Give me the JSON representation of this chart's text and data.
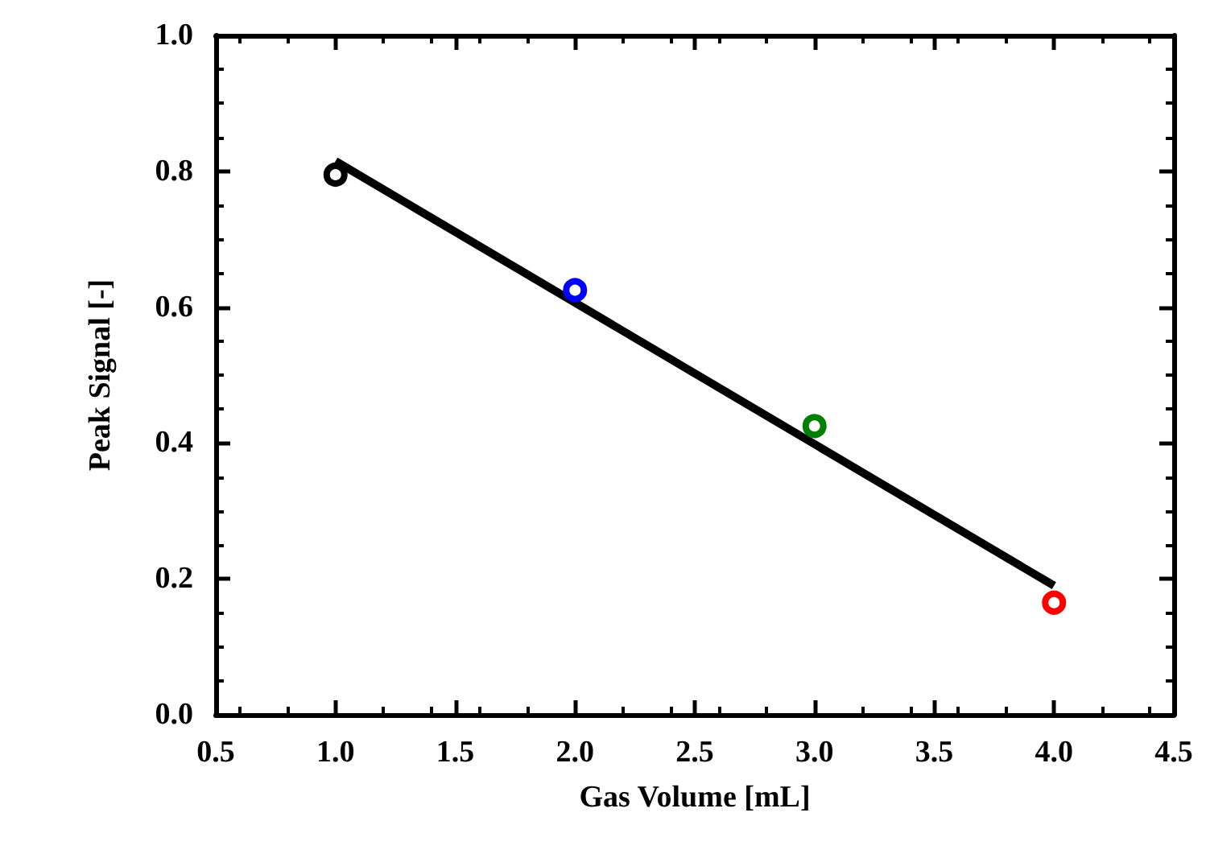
{
  "chart_data": {
    "type": "scatter",
    "xlabel": "Gas Volume [mL]",
    "ylabel": "Peak Signal [-]",
    "xlim": [
      0.5,
      4.5
    ],
    "xticks": [
      0.5,
      {
        "value": 1,
        "label": "1.0"
      },
      1.5,
      {
        "value": 2,
        "label": "2.0"
      },
      2.5,
      {
        "value": 3,
        "label": "3.0"
      },
      3.5,
      {
        "value": 4,
        "label": "4.0"
      },
      4.5
    ],
    "ylim": [
      0,
      1
    ],
    "yticks": [
      {
        "value": 0,
        "label": "0.0"
      },
      0.2,
      0.4,
      0.6,
      0.8,
      {
        "value": 1,
        "label": "1.0"
      }
    ],
    "grid": false,
    "series": [
      {
        "marker": "circle",
        "x": [
          1,
          2,
          3,
          4
        ],
        "values": [
          0.795,
          0.625,
          0.425,
          0.165
        ],
        "colors": [
          "#000000",
          "#0000ff",
          "#008000",
          "#ff0000"
        ]
      },
      {
        "type": "line",
        "x": [
          1,
          4
        ],
        "values": [
          0.815,
          0.19
        ],
        "color": "#000000",
        "line_style": "solid",
        "marker": "none"
      }
    ]
  }
}
